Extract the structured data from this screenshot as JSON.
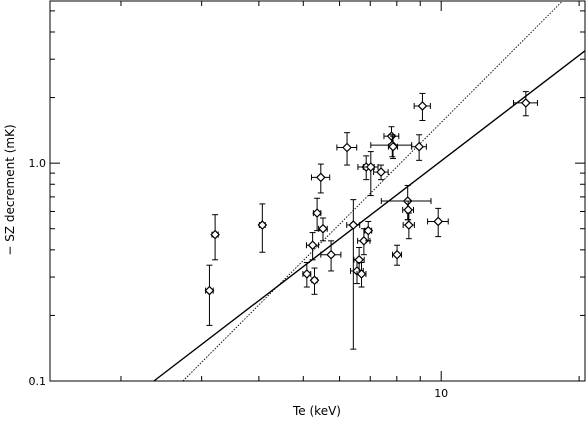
{
  "chart_data": {
    "type": "scatter",
    "title": "",
    "xlabel": "Te (keV)",
    "ylabel": "− SZ decrement (mK)",
    "xscale": "log",
    "yscale": "log",
    "xlim": [
      1.4,
      20.6
    ],
    "ylim": [
      0.1,
      5.55
    ],
    "x_ticks": [
      {
        "value": 10,
        "label": "10"
      }
    ],
    "y_ticks": [
      {
        "value": 0.1,
        "label": "0.1"
      },
      {
        "value": 1.0,
        "label": "1.0"
      }
    ],
    "grid": false,
    "legend": "none",
    "series": [
      {
        "marker": "diamond",
        "color": "#000000",
        "points": [
          {
            "x": 3.12,
            "y": 0.26,
            "xerr": [
              0.06,
              0.06
            ],
            "yerr": [
              0.08,
              0.08
            ]
          },
          {
            "x": 3.21,
            "y": 0.47,
            "xerr": [
              0.05,
              0.05
            ],
            "yerr": [
              0.11,
              0.11
            ]
          },
          {
            "x": 4.07,
            "y": 0.52,
            "xerr": [
              0.06,
              0.06
            ],
            "yerr": [
              0.13,
              0.13
            ]
          },
          {
            "x": 5.09,
            "y": 0.31,
            "xerr": [
              0.1,
              0.1
            ],
            "yerr": [
              0.04,
              0.04
            ]
          },
          {
            "x": 5.24,
            "y": 0.42,
            "xerr": [
              0.16,
              0.16
            ],
            "yerr": [
              0.06,
              0.06
            ]
          },
          {
            "x": 5.29,
            "y": 0.29,
            "xerr": [
              0.07,
              0.07
            ],
            "yerr": [
              0.04,
              0.04
            ]
          },
          {
            "x": 5.36,
            "y": 0.59,
            "xerr": [
              0.1,
              0.1
            ],
            "yerr": [
              0.1,
              0.1
            ]
          },
          {
            "x": 5.46,
            "y": 0.86,
            "xerr": [
              0.25,
              0.25
            ],
            "yerr": [
              0.13,
              0.13
            ]
          },
          {
            "x": 5.52,
            "y": 0.5,
            "xerr": [
              0.12,
              0.12
            ],
            "yerr": [
              0.06,
              0.06
            ]
          },
          {
            "x": 5.75,
            "y": 0.38,
            "xerr": [
              0.29,
              0.29
            ],
            "yerr": [
              0.06,
              0.06
            ]
          },
          {
            "x": 6.23,
            "y": 1.18,
            "xerr": [
              0.31,
              0.31
            ],
            "yerr": [
              0.2,
              0.2
            ]
          },
          {
            "x": 6.43,
            "y": 0.52,
            "xerr": [
              0.21,
              0.21
            ],
            "yerr": [
              0.38,
              0.16
            ]
          },
          {
            "x": 6.55,
            "y": 0.32,
            "xerr": [
              0.21,
              0.21
            ],
            "yerr": [
              0.04,
              0.04
            ]
          },
          {
            "x": 6.62,
            "y": 0.36,
            "xerr": [
              0.17,
              0.17
            ],
            "yerr": [
              0.05,
              0.05
            ]
          },
          {
            "x": 6.7,
            "y": 0.31,
            "xerr": [
              0.15,
              0.15
            ],
            "yerr": [
              0.04,
              0.04
            ]
          },
          {
            "x": 6.78,
            "y": 0.44,
            "xerr": [
              0.21,
              0.21
            ],
            "yerr": [
              0.06,
              0.06
            ]
          },
          {
            "x": 6.86,
            "y": 0.96,
            "xerr": [
              0.28,
              0.28
            ],
            "yerr": [
              0.12,
              0.12
            ]
          },
          {
            "x": 6.93,
            "y": 0.49,
            "xerr": [
              0.12,
              0.12
            ],
            "yerr": [
              0.05,
              0.05
            ]
          },
          {
            "x": 7.02,
            "y": 0.96,
            "xerr": [
              0.26,
              0.26
            ],
            "yerr": [
              0.25,
              0.17
            ]
          },
          {
            "x": 7.39,
            "y": 0.91,
            "xerr": [
              0.27,
              0.27
            ],
            "yerr": [
              0.07,
              0.07
            ]
          },
          {
            "x": 7.79,
            "y": 1.33,
            "xerr": [
              0.29,
              0.29
            ],
            "yerr": [
              0.14,
              0.14
            ]
          },
          {
            "x": 7.82,
            "y": 1.21,
            "xerr": [
              0.8,
              0.8
            ],
            "yerr": [
              0.14,
              0.14
            ]
          },
          {
            "x": 7.85,
            "y": 1.19,
            "xerr": [
              0.18,
              0.18
            ],
            "yerr": [
              0.14,
              0.14
            ]
          },
          {
            "x": 8.01,
            "y": 0.38,
            "xerr": [
              0.18,
              0.18
            ],
            "yerr": [
              0.04,
              0.04
            ]
          },
          {
            "x": 8.45,
            "y": 0.67,
            "xerr": [
              1.05,
              1.05
            ],
            "yerr": [
              0.12,
              0.12
            ]
          },
          {
            "x": 8.47,
            "y": 0.61,
            "xerr": [
              0.23,
              0.23
            ],
            "yerr": [
              0.06,
              0.06
            ]
          },
          {
            "x": 8.5,
            "y": 0.52,
            "xerr": [
              0.24,
              0.24
            ],
            "yerr": [
              0.07,
              0.07
            ]
          },
          {
            "x": 8.95,
            "y": 1.19,
            "xerr": [
              0.33,
              0.33
            ],
            "yerr": [
              0.16,
              0.16
            ]
          },
          {
            "x": 9.1,
            "y": 1.83,
            "xerr": [
              0.37,
              0.37
            ],
            "yerr": [
              0.26,
              0.26
            ]
          },
          {
            "x": 9.85,
            "y": 0.54,
            "xerr": [
              0.51,
              0.51
            ],
            "yerr": [
              0.08,
              0.08
            ]
          },
          {
            "x": 15.3,
            "y": 1.89,
            "xerr": [
              0.92,
              0.92
            ],
            "yerr": [
              0.24,
              0.24
            ]
          }
        ]
      }
    ],
    "fit_lines": [
      {
        "style": "solid",
        "color": "#000000",
        "points": [
          [
            2.36,
            0.1
          ],
          [
            20.6,
            3.28
          ]
        ]
      },
      {
        "style": "dotted",
        "color": "#000000",
        "points": [
          [
            2.73,
            0.1
          ],
          [
            18.4,
            5.55
          ]
        ]
      }
    ]
  }
}
